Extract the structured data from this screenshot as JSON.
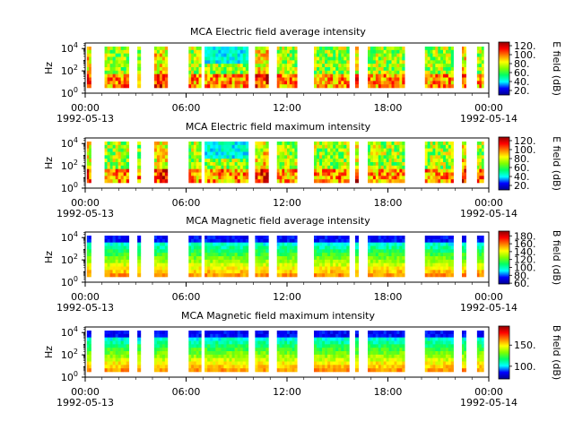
{
  "chart_data": [
    {
      "type": "heatmap",
      "title": "MCA  Electric field average intensity",
      "ylabel": "Hz",
      "yscale": "log",
      "yticks": [
        {
          "base": "10",
          "exp": "0"
        },
        {
          "base": "10",
          "exp": "2"
        },
        {
          "base": "10",
          "exp": "4"
        }
      ],
      "xticks": [
        {
          "time": "00:00",
          "date": "1992-05-13"
        },
        {
          "time": "06:00",
          "date": ""
        },
        {
          "time": "12:00",
          "date": ""
        },
        {
          "time": "18:00",
          "date": ""
        },
        {
          "time": "00:00",
          "date": "1992-05-14"
        }
      ],
      "colorbar": {
        "label": "E field (dB)",
        "ticks": [
          "20.",
          "40.",
          "60.",
          "80.",
          "100.",
          "120."
        ],
        "range": [
          10,
          128
        ]
      },
      "colormap": "E",
      "x_range_hours": [
        0,
        24
      ],
      "data_intervals_hours": [
        [
          0.1,
          0.35
        ],
        [
          1.15,
          2.6
        ],
        [
          3.1,
          3.3
        ],
        [
          4.1,
          4.9
        ],
        [
          6.15,
          6.9
        ],
        [
          7.1,
          9.7
        ],
        [
          10.1,
          10.9
        ],
        [
          11.4,
          12.6
        ],
        [
          13.6,
          15.7
        ],
        [
          16.05,
          16.25
        ],
        [
          16.8,
          19.0
        ],
        [
          20.2,
          21.9
        ],
        [
          22.4,
          22.65
        ],
        [
          23.3,
          23.7
        ]
      ]
    },
    {
      "type": "heatmap",
      "title": "MCA  Electric field maximum intensity",
      "ylabel": "Hz",
      "yscale": "log",
      "yticks": [
        {
          "base": "10",
          "exp": "0"
        },
        {
          "base": "10",
          "exp": "2"
        },
        {
          "base": "10",
          "exp": "4"
        }
      ],
      "xticks": [
        {
          "time": "00:00",
          "date": "1992-05-13"
        },
        {
          "time": "06:00",
          "date": ""
        },
        {
          "time": "12:00",
          "date": ""
        },
        {
          "time": "18:00",
          "date": ""
        },
        {
          "time": "00:00",
          "date": "1992-05-14"
        }
      ],
      "colorbar": {
        "label": "E field (dB)",
        "ticks": [
          "20.",
          "40.",
          "60.",
          "80.",
          "100.",
          "120."
        ],
        "range": [
          10,
          128
        ]
      },
      "colormap": "E",
      "x_range_hours": [
        0,
        24
      ],
      "data_intervals_hours": [
        [
          0.1,
          0.35
        ],
        [
          1.15,
          2.6
        ],
        [
          3.1,
          3.3
        ],
        [
          4.1,
          4.9
        ],
        [
          6.15,
          6.9
        ],
        [
          7.1,
          9.7
        ],
        [
          10.1,
          10.9
        ],
        [
          11.4,
          12.6
        ],
        [
          13.6,
          15.7
        ],
        [
          16.05,
          16.25
        ],
        [
          16.8,
          19.0
        ],
        [
          20.2,
          21.9
        ],
        [
          22.4,
          22.65
        ],
        [
          23.3,
          23.7
        ]
      ]
    },
    {
      "type": "heatmap",
      "title": "MCA  Magnetic field average intensity",
      "ylabel": "Hz",
      "yscale": "log",
      "yticks": [
        {
          "base": "10",
          "exp": "0"
        },
        {
          "base": "10",
          "exp": "2"
        },
        {
          "base": "10",
          "exp": "4"
        }
      ],
      "xticks": [
        {
          "time": "00:00",
          "date": "1992-05-13"
        },
        {
          "time": "06:00",
          "date": ""
        },
        {
          "time": "12:00",
          "date": ""
        },
        {
          "time": "18:00",
          "date": ""
        },
        {
          "time": "00:00",
          "date": "1992-05-14"
        }
      ],
      "colorbar": {
        "label": "B field (dB)",
        "ticks": [
          "60.",
          "80.",
          "100.",
          "120.",
          "140.",
          "160.",
          "180."
        ],
        "range": [
          58,
          192
        ]
      },
      "colormap": "B",
      "x_range_hours": [
        0,
        24
      ],
      "data_intervals_hours": [
        [
          0.1,
          0.35
        ],
        [
          1.15,
          2.6
        ],
        [
          3.1,
          3.3
        ],
        [
          4.1,
          4.9
        ],
        [
          6.15,
          6.9
        ],
        [
          7.1,
          9.7
        ],
        [
          10.1,
          10.9
        ],
        [
          11.4,
          12.6
        ],
        [
          13.6,
          15.7
        ],
        [
          16.05,
          16.25
        ],
        [
          16.8,
          19.0
        ],
        [
          20.2,
          21.9
        ],
        [
          22.4,
          22.65
        ],
        [
          23.3,
          23.7
        ]
      ]
    },
    {
      "type": "heatmap",
      "title": "MCA  Magnetic field maximum intensity",
      "ylabel": "Hz",
      "yscale": "log",
      "yticks": [
        {
          "base": "10",
          "exp": "0"
        },
        {
          "base": "10",
          "exp": "2"
        },
        {
          "base": "10",
          "exp": "4"
        }
      ],
      "xticks": [
        {
          "time": "00:00",
          "date": "1992-05-13"
        },
        {
          "time": "06:00",
          "date": ""
        },
        {
          "time": "12:00",
          "date": ""
        },
        {
          "time": "18:00",
          "date": ""
        },
        {
          "time": "00:00",
          "date": "1992-05-14"
        }
      ],
      "colorbar": {
        "label": "B field (dB)",
        "ticks": [
          "100.",
          "150."
        ],
        "range": [
          70,
          195
        ]
      },
      "colormap": "B",
      "x_range_hours": [
        0,
        24
      ],
      "data_intervals_hours": [
        [
          0.1,
          0.35
        ],
        [
          1.15,
          2.6
        ],
        [
          3.1,
          3.3
        ],
        [
          4.1,
          4.9
        ],
        [
          6.15,
          6.9
        ],
        [
          7.1,
          9.7
        ],
        [
          10.1,
          10.9
        ],
        [
          11.4,
          12.6
        ],
        [
          13.6,
          15.7
        ],
        [
          16.05,
          16.25
        ],
        [
          16.8,
          19.0
        ],
        [
          20.2,
          21.9
        ],
        [
          22.4,
          22.65
        ],
        [
          23.3,
          23.7
        ]
      ]
    }
  ],
  "colors": {
    "colormap_stops": [
      "#00008f",
      "#0000ff",
      "#00ffff",
      "#00ff66",
      "#7fff00",
      "#ffff00",
      "#ff8000",
      "#ff0000",
      "#8f0000"
    ],
    "axis": "#000000",
    "background": "#ffffff"
  }
}
